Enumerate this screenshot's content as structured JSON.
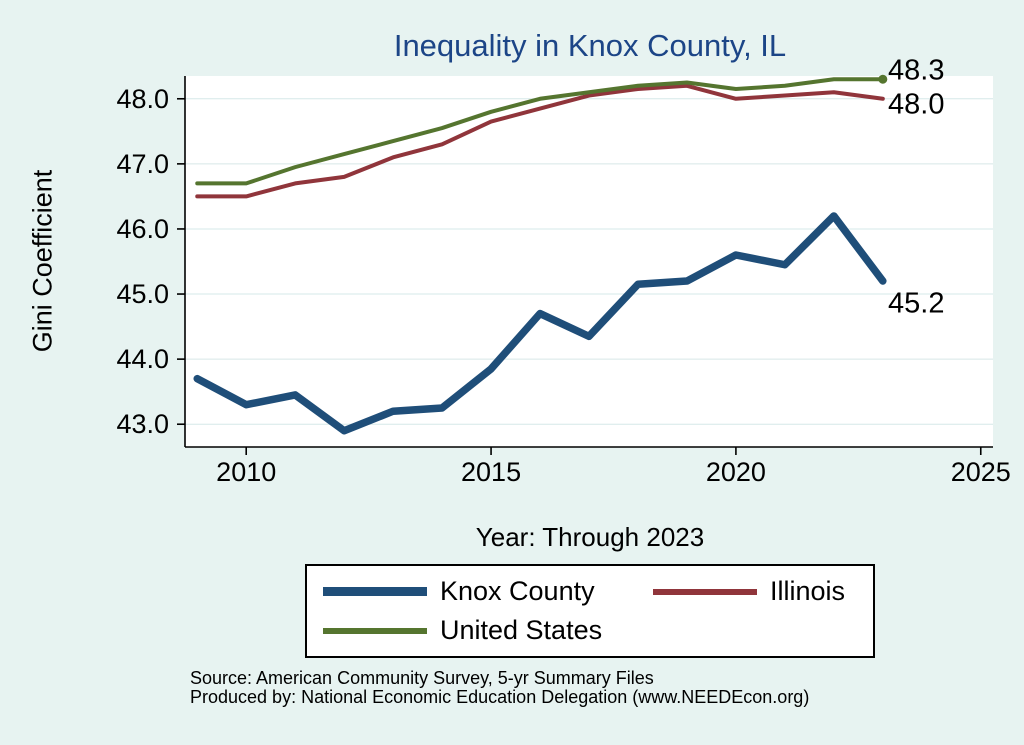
{
  "colors": {
    "background": "#e7f3f1",
    "plot_background": "#ffffff",
    "grid": "#d6e8e8",
    "axis": "#000000",
    "title": "#1c4587"
  },
  "footer": {
    "source": "Source: American Community Survey, 5-yr Summary Files",
    "produced_by": "Produced by: National Economic Education Delegation (www.NEEDEcon.org)"
  },
  "chart_data": {
    "type": "line",
    "title": "Inequality in Knox County, IL",
    "xlabel": "Year: Through 2023",
    "ylabel": "Gini Coefficient",
    "x": [
      2009,
      2010,
      2011,
      2012,
      2013,
      2014,
      2015,
      2016,
      2017,
      2018,
      2019,
      2020,
      2021,
      2022,
      2023
    ],
    "series": [
      {
        "name": "Knox County",
        "color": "#1f4e79",
        "width": 7.5,
        "values": [
          43.7,
          43.3,
          43.45,
          42.9,
          43.2,
          43.25,
          43.85,
          44.7,
          44.35,
          45.15,
          45.2,
          45.6,
          45.45,
          46.2,
          45.2
        ],
        "end_label": "45.2"
      },
      {
        "name": "Illinois",
        "color": "#90353b",
        "width": 4,
        "values": [
          46.5,
          46.5,
          46.7,
          46.8,
          47.1,
          47.3,
          47.65,
          47.85,
          48.05,
          48.15,
          48.2,
          48.0,
          48.05,
          48.1,
          48.0
        ],
        "end_label": "48.0"
      },
      {
        "name": "United States",
        "color": "#55752f",
        "width": 4,
        "values": [
          46.7,
          46.7,
          46.95,
          47.15,
          47.35,
          47.55,
          47.8,
          48.0,
          48.1,
          48.2,
          48.25,
          48.15,
          48.2,
          48.3,
          48.3
        ],
        "end_label": "48.3"
      }
    ],
    "y_ticks": [
      43.0,
      44.0,
      45.0,
      46.0,
      47.0,
      48.0
    ],
    "x_ticks": [
      2010,
      2015,
      2020,
      2025
    ],
    "xlim": [
      2008.75,
      2025.25
    ],
    "ylim": [
      42.65,
      48.35
    ],
    "grid": true,
    "legend_position": "bottom"
  }
}
